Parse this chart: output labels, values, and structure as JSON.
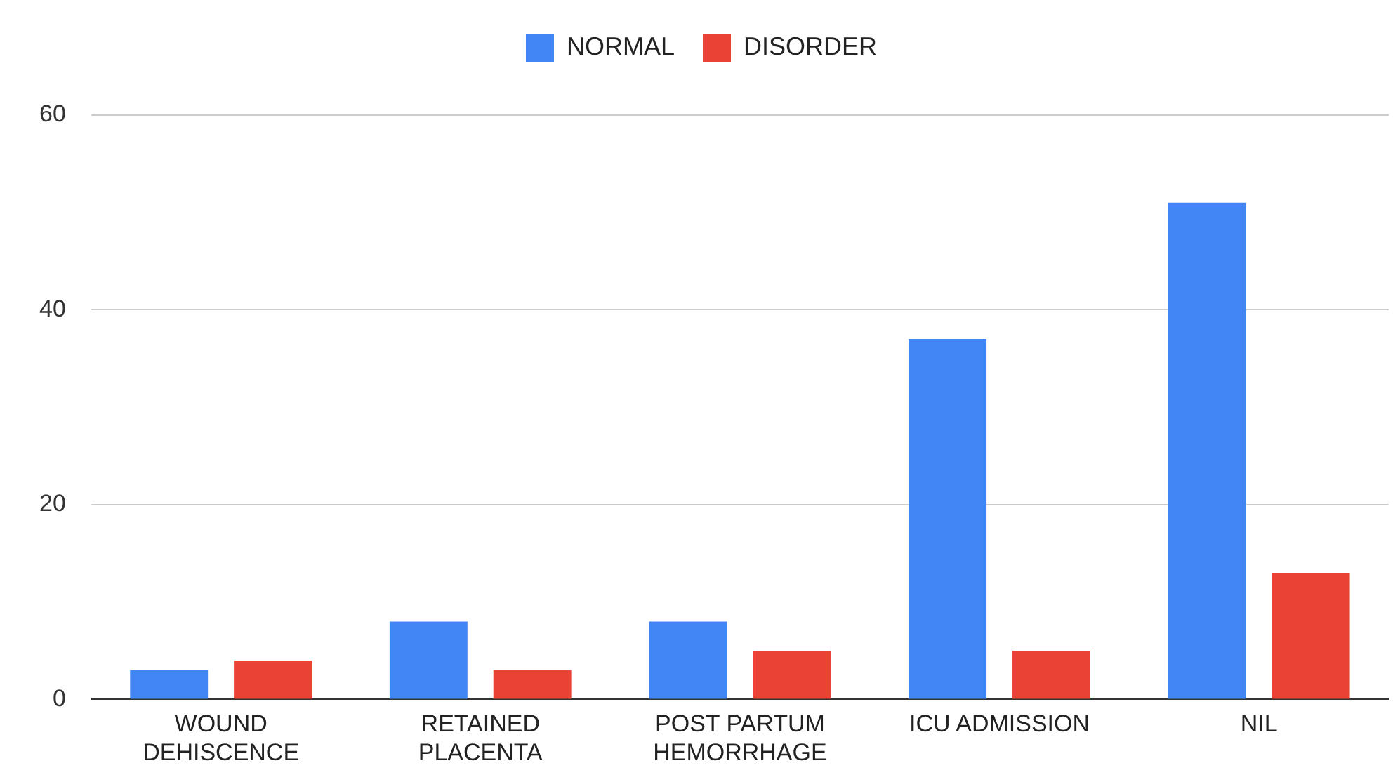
{
  "chart_data": {
    "type": "bar",
    "categories": [
      "WOUND DEHISCENCE",
      "RETAINED PLACENTA",
      "POST PARTUM HEMORRHAGE",
      "ICU ADMISSION",
      "NIL"
    ],
    "series": [
      {
        "name": "NORMAL",
        "color": "#4285f4",
        "values": [
          3,
          8,
          8,
          37,
          51
        ]
      },
      {
        "name": "DISORDER",
        "color": "#ea4335",
        "values": [
          4,
          3,
          5,
          5,
          13
        ]
      }
    ],
    "ylim": [
      0,
      60
    ],
    "yticks": [
      0,
      20,
      40,
      60
    ],
    "grid": "y",
    "legend": "top"
  }
}
